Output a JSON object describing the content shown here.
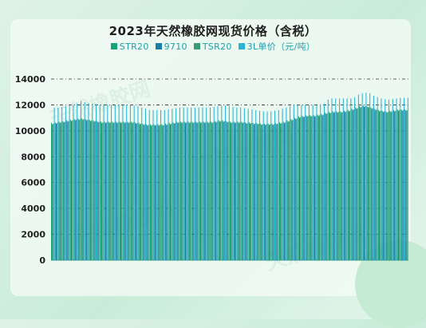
{
  "chart_data": {
    "type": "bar",
    "title": "2023年天然橡胶网现货价格（含税）",
    "legend": [
      {
        "name": "STR20",
        "color": "#15a37a"
      },
      {
        "name": "9710",
        "color": "#1b7fa3"
      },
      {
        "name": "TSR20",
        "color": "#3c9a7a"
      },
      {
        "name": "3L单价（元/吨）",
        "color": "#2bb3d6"
      }
    ],
    "yticks": [
      "0",
      "2000",
      "4000",
      "6000",
      "8000",
      "10000",
      "12000",
      "14000"
    ],
    "ylim": [
      0,
      14000
    ],
    "grid": "dashed horizontal",
    "series": [
      {
        "name": "STR20",
        "color": "#15a37a",
        "values": [
          10600,
          10650,
          10700,
          10750,
          10800,
          10850,
          10900,
          10950,
          10950,
          10900,
          10850,
          10800,
          10750,
          10700,
          10700,
          10700,
          10700,
          10700,
          10700,
          10700,
          10700,
          10700,
          10650,
          10600,
          10550,
          10500,
          10500,
          10500,
          10500,
          10500,
          10550,
          10600,
          10650,
          10700,
          10700,
          10700,
          10700,
          10700,
          10700,
          10700,
          10700,
          10700,
          10700,
          10750,
          10800,
          10800,
          10750,
          10700,
          10700,
          10700,
          10700,
          10650,
          10650,
          10600,
          10600,
          10550,
          10550,
          10550,
          10550,
          10600,
          10650,
          10700,
          10800,
          10900,
          11000,
          11100,
          11150,
          11200,
          11200,
          11200,
          11250,
          11300,
          11400,
          11450,
          11500,
          11500,
          11500,
          11550,
          11600,
          11700,
          11800,
          11900,
          11950,
          11900,
          11800,
          11700,
          11600,
          11550,
          11500,
          11550,
          11600,
          11650,
          11650,
          11650
        ]
      },
      {
        "name": "9710",
        "color": "#1b7fa3",
        "values": [
          10500,
          10550,
          10600,
          10650,
          10700,
          10750,
          10800,
          10850,
          10850,
          10800,
          10750,
          10700,
          10650,
          10600,
          10600,
          10600,
          10600,
          10600,
          10600,
          10600,
          10600,
          10600,
          10550,
          10500,
          10450,
          10400,
          10400,
          10400,
          10400,
          10400,
          10450,
          10500,
          10550,
          10600,
          10600,
          10600,
          10600,
          10600,
          10600,
          10600,
          10600,
          10600,
          10600,
          10650,
          10700,
          10700,
          10650,
          10600,
          10600,
          10600,
          10600,
          10550,
          10550,
          10500,
          10500,
          10450,
          10450,
          10450,
          10450,
          10500,
          10550,
          10600,
          10700,
          10800,
          10900,
          11000,
          11050,
          11100,
          11100,
          11100,
          11150,
          11200,
          11300,
          11350,
          11400,
          11400,
          11400,
          11450,
          11500,
          11600,
          11700,
          11800,
          11850,
          11800,
          11700,
          11600,
          11500,
          11450,
          11400,
          11450,
          11500,
          11550,
          11550,
          11550
        ]
      },
      {
        "name": "TSR20",
        "color": "#3c9a7a",
        "values": [
          10550,
          10600,
          10650,
          10700,
          10750,
          10800,
          10850,
          10900,
          10900,
          10850,
          10800,
          10750,
          10700,
          10650,
          10650,
          10650,
          10650,
          10650,
          10650,
          10650,
          10650,
          10650,
          10600,
          10550,
          10500,
          10450,
          10450,
          10450,
          10450,
          10450,
          10500,
          10550,
          10600,
          10650,
          10650,
          10650,
          10650,
          10650,
          10650,
          10650,
          10650,
          10650,
          10650,
          10700,
          10750,
          10750,
          10700,
          10650,
          10650,
          10650,
          10650,
          10600,
          10600,
          10550,
          10550,
          10500,
          10500,
          10500,
          10500,
          10550,
          10600,
          10650,
          10750,
          10850,
          10950,
          11050,
          11100,
          11150,
          11150,
          11150,
          11200,
          11250,
          11350,
          11400,
          11450,
          11450,
          11450,
          11500,
          11550,
          11650,
          11750,
          11850,
          11900,
          11850,
          11750,
          11650,
          11550,
          11500,
          11450,
          11500,
          11550,
          11600,
          11600,
          11600
        ]
      },
      {
        "name": "3L单价（元/吨）",
        "color": "#2bb3d6",
        "values": [
          11800,
          11800,
          11850,
          11900,
          11950,
          12000,
          12100,
          12300,
          12200,
          12150,
          12100,
          12050,
          12000,
          12000,
          12000,
          12000,
          12000,
          12000,
          12000,
          12000,
          12000,
          11950,
          11900,
          11800,
          11700,
          11600,
          11600,
          11600,
          11600,
          11600,
          11650,
          11700,
          11750,
          11800,
          11800,
          11800,
          11800,
          11800,
          11800,
          11800,
          11800,
          11800,
          11850,
          11900,
          11950,
          11950,
          11900,
          11850,
          11800,
          11800,
          11750,
          11700,
          11650,
          11600,
          11550,
          11500,
          11500,
          11500,
          11550,
          11600,
          11700,
          11800,
          11900,
          12000,
          12000,
          12000,
          12000,
          12000,
          12000,
          12000,
          12050,
          12100,
          12400,
          12500,
          12500,
          12500,
          12500,
          12500,
          12500,
          12600,
          12800,
          12900,
          12950,
          12900,
          12700,
          12600,
          12500,
          12450,
          12400,
          12450,
          12500,
          12550,
          12550,
          12550
        ]
      }
    ]
  },
  "watermark_text": "天然橡胶网"
}
